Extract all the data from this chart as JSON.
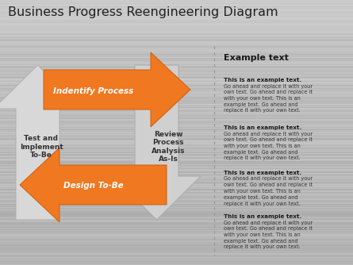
{
  "title": "Business Progress Reengineering Diagram",
  "title_fontsize": 11.5,
  "title_color": "#222222",
  "orange": "#F07820",
  "orange_edge": "#cc6010",
  "gray_arrow": "#d0d0d0",
  "gray_arrow_edge": "#aaaaaa",
  "dashed_line_color": "#999999",
  "text_dark": "#222222",
  "text_side": "#333333",
  "labels": {
    "top_arrow": "Indentify Process",
    "bottom_arrow": "Design To-Be",
    "left_label": "Test and\nImplement\nTo-Be",
    "right_label": "Review\nProcess\nAnalysis\nAs-Is"
  },
  "example_title": "Example text",
  "example_blocks": [
    {
      "bold": "This is an example text.",
      "body": "Go ahead and replace it with your own text. Go ahead and replace it with your own text. This is an example text. Go ahead and replace it with your own text."
    },
    {
      "bold": "This is an example text.",
      "body": "Go ahead and replace it with your own text. Go ahead and replace it with your own text. This is an example text. Go ahead and replace it with your own text."
    },
    {
      "bold": "This is an example text.",
      "body": "Go ahead and replace it with your own text. Go ahead and replace it with your own text. This is an example text. Go ahead and replace it with your own text."
    },
    {
      "bold": "This is an example text.",
      "body": "Go ahead and replace it with your own text. Go ahead and replace it with your own text. This is an example text. Go ahead and replace it with your own text."
    }
  ],
  "bg_stripes_color": "#b8b8b8",
  "bg_light": "#cdcdcd",
  "bg_dark": "#a8a8a8"
}
